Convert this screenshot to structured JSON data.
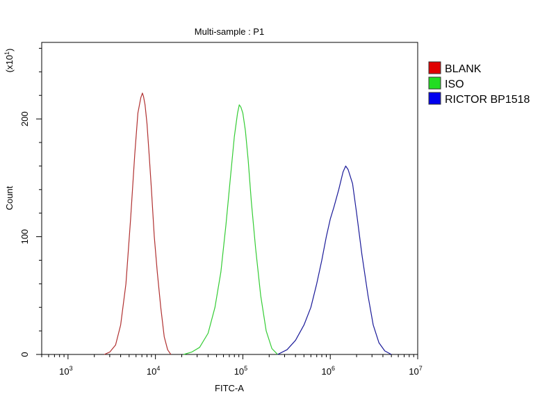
{
  "chart_data": {
    "type": "line",
    "title": "Multi-sample : P1",
    "xlabel": "FITC-A",
    "ylabel": "Count",
    "y_multiplier_label": {
      "base": "(x10",
      "exp": "1",
      "close": ")"
    },
    "x_scale": "log",
    "xlim": [
      500,
      10000000
    ],
    "ylim": [
      0,
      265
    ],
    "x_ticks": [
      {
        "base": "10",
        "exp": "3",
        "value": 1000
      },
      {
        "base": "10",
        "exp": "4",
        "value": 10000
      },
      {
        "base": "10",
        "exp": "5",
        "value": 100000
      },
      {
        "base": "10",
        "exp": "6",
        "value": 1000000
      },
      {
        "base": "10",
        "exp": "7",
        "value": 10000000
      }
    ],
    "y_ticks": [
      {
        "label": "0",
        "value": 0
      },
      {
        "label": "100",
        "value": 100
      },
      {
        "label": "200",
        "value": 200
      }
    ],
    "grid": false,
    "legend_position": "right",
    "series": [
      {
        "name": "BLANK",
        "color": "#b03030",
        "swatch_color": "#e00000",
        "x": [
          2600,
          3000,
          3500,
          4000,
          4600,
          5200,
          5800,
          6300,
          6800,
          7100,
          7300,
          7600,
          8000,
          8500,
          9000,
          9700,
          10500,
          11500,
          12600,
          13800,
          15000
        ],
        "y": [
          0,
          2,
          8,
          25,
          60,
          115,
          170,
          205,
          218,
          222,
          219,
          212,
          196,
          168,
          140,
          100,
          70,
          40,
          15,
          4,
          0
        ]
      },
      {
        "name": "ISO",
        "color": "#33cc33",
        "swatch_color": "#22dd22",
        "x": [
          21000,
          26000,
          32000,
          40000,
          48000,
          56000,
          64000,
          72000,
          80000,
          87000,
          91000,
          95000,
          100000,
          107000,
          115000,
          125000,
          140000,
          160000,
          185000,
          215000,
          250000
        ],
        "y": [
          0,
          2,
          6,
          18,
          40,
          70,
          110,
          150,
          185,
          205,
          212,
          210,
          205,
          190,
          165,
          130,
          90,
          50,
          20,
          5,
          0
        ]
      },
      {
        "name": "RICTOR BP1518",
        "color": "#1a1a99",
        "swatch_color": "#0000ee",
        "x": [
          250000,
          320000,
          400000,
          500000,
          600000,
          700000,
          800000,
          900000,
          1000000,
          1100000,
          1250000,
          1400000,
          1500000,
          1600000,
          1800000,
          2000000,
          2300000,
          2700000,
          3100000,
          3600000,
          4200000,
          5000000
        ],
        "y": [
          0,
          4,
          12,
          25,
          40,
          60,
          80,
          100,
          115,
          125,
          140,
          155,
          160,
          157,
          145,
          120,
          85,
          50,
          25,
          10,
          3,
          0
        ]
      }
    ]
  }
}
